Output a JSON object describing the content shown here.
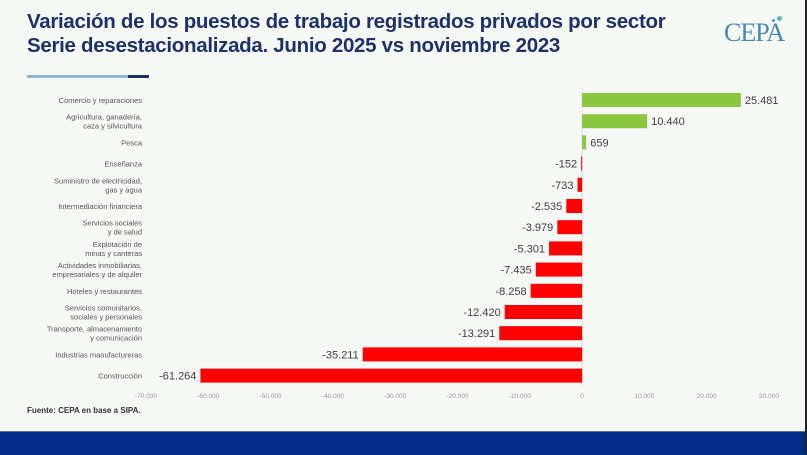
{
  "header": {
    "title_line1": "Variación de los puestos de trabajo registrados privados por sector",
    "title_line2": "Serie desestacionalizada. Junio 2025 vs noviembre 2023",
    "logo_text": "CEPA"
  },
  "source": "Fuente: CEPA en base a SIPA.",
  "colors": {
    "positive": "#8cc63f",
    "negative": "#ff0000",
    "title": "#1f3268",
    "footer": "#032b8a"
  },
  "chart_data": {
    "type": "bar",
    "orientation": "horizontal",
    "title": "Variación de los puestos de trabajo registrados privados por sector",
    "subtitle": "Serie desestacionalizada. Junio 2025 vs noviembre 2023",
    "categories": [
      [
        "Comercio y reparaciones"
      ],
      [
        "Agricultura, ganadería,",
        "caza y silvicultura"
      ],
      [
        "Pesca"
      ],
      [
        "Enseñanza"
      ],
      [
        "Suministro de electricidad,",
        "gas y agua"
      ],
      [
        "Intermediación financiera"
      ],
      [
        "Servicios sociales",
        "y de salud"
      ],
      [
        "Explotación de",
        "minas y canteras"
      ],
      [
        "Actividades inmobiliarias,",
        "empresariales y de alquiler"
      ],
      [
        "Hoteles y restaurantes"
      ],
      [
        "Servicios comunitarios,",
        "sociales y personales"
      ],
      [
        "Transporte, almacenamiento",
        "y comunicación"
      ],
      [
        "Industrias manufactureras"
      ],
      [
        "Construcción"
      ]
    ],
    "values": [
      25481,
      10440,
      659,
      -152,
      -733,
      -2535,
      -3979,
      -5301,
      -7435,
      -8258,
      -12420,
      -13291,
      -35211,
      -61264
    ],
    "value_labels": [
      "25.481",
      "10.440",
      "659",
      "-152",
      "-733",
      "-2.535",
      "-3.979",
      "-5.301",
      "-7.435",
      "-8.258",
      "-12.420",
      "-13.291",
      "-35.211",
      "-61.264"
    ],
    "xlim": [
      -70000,
      30000
    ],
    "xticks": [
      -70000,
      -60000,
      -50000,
      -40000,
      -30000,
      -20000,
      -10000,
      0,
      10000,
      20000,
      30000
    ],
    "xtick_labels": [
      "-70.000",
      "-60.000",
      "-50.000",
      "-40.000",
      "-30.000",
      "-20.000",
      "-10.000",
      "0",
      "10.000",
      "20.000",
      "30.000"
    ],
    "xlabel": "",
    "ylabel": "",
    "grid": false,
    "legend": "none"
  }
}
